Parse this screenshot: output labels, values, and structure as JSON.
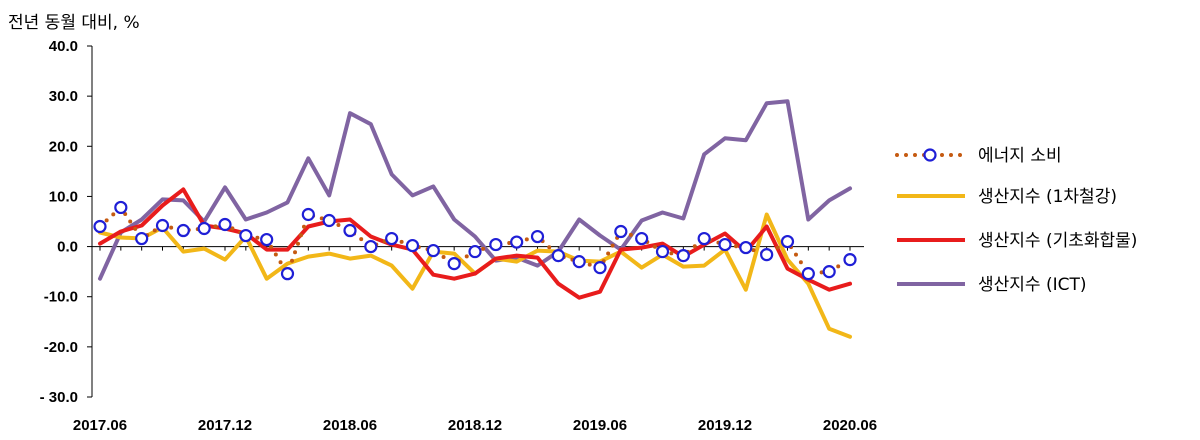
{
  "chart_data": {
    "type": "line",
    "unit_label": "전년 동월 대비, %",
    "ylim": [
      -30,
      40
    ],
    "y_ticks": [
      40,
      30,
      20,
      10,
      0,
      -10,
      -20,
      -30
    ],
    "y_tick_labels": [
      "40.0",
      "30.0",
      "20.0",
      "10.0",
      "0.0",
      "-10.0",
      "-20.0",
      "- 30.0"
    ],
    "x_tick_labels": [
      "2017.06",
      "2017.12",
      "2018.06",
      "2018.12",
      "2019.06",
      "2019.12",
      "2020.06"
    ],
    "x_tick_positions": [
      0,
      6,
      12,
      18,
      24,
      30,
      36
    ],
    "grid": false,
    "legend_position": "right",
    "series": [
      {
        "name": "에너지 소비",
        "color": "#c55a11",
        "marker_color": "#1f1fd6",
        "style": "dotted-circle",
        "values": [
          4.0,
          7.8,
          1.6,
          4.2,
          3.2,
          3.6,
          4.4,
          2.2,
          1.4,
          -5.4,
          6.4,
          5.2,
          3.2,
          0.0,
          1.6,
          0.2,
          -0.8,
          -3.4,
          -1.0,
          0.4,
          0.9,
          2.0,
          -1.8,
          -3.0,
          -4.2,
          3.0,
          1.6,
          -1.0,
          -1.8,
          1.6,
          0.4,
          -0.2,
          -1.6,
          1.0,
          -5.4,
          -5.0,
          -2.6
        ]
      },
      {
        "name": "생산지수 (1차철강)",
        "color": "#f2b718",
        "style": "line",
        "values": [
          2.8,
          1.8,
          1.6,
          3.8,
          -1.0,
          -0.4,
          -2.6,
          2.0,
          -6.4,
          -3.4,
          -2.0,
          -1.4,
          -2.4,
          -1.8,
          -3.8,
          -8.4,
          -1.0,
          -1.4,
          -5.4,
          -2.4,
          -3.0,
          -0.8,
          -1.0,
          -2.8,
          -3.0,
          -1.0,
          -4.2,
          -1.6,
          -4.0,
          -3.8,
          -0.6,
          -8.6,
          6.4,
          -2.6,
          -7.4,
          -16.4,
          -18.0
        ]
      },
      {
        "name": "생산지수 (기초화합물)",
        "color": "#e81c1c",
        "style": "line",
        "values": [
          0.6,
          3.0,
          4.2,
          8.2,
          11.4,
          4.2,
          3.6,
          2.6,
          -0.6,
          -0.6,
          4.0,
          5.0,
          5.4,
          2.0,
          0.4,
          -0.6,
          -5.6,
          -6.4,
          -5.4,
          -2.4,
          -1.8,
          -2.2,
          -7.4,
          -10.2,
          -9.0,
          -0.6,
          -0.2,
          0.6,
          -2.0,
          0.4,
          2.6,
          -1.0,
          4.0,
          -4.4,
          -6.6,
          -8.6,
          -7.4
        ]
      },
      {
        "name": "생산지수 (ICT)",
        "color": "#8064a2",
        "style": "line",
        "values": [
          -6.4,
          2.8,
          5.4,
          9.4,
          9.2,
          5.0,
          11.8,
          5.4,
          6.8,
          8.8,
          17.6,
          10.2,
          26.6,
          24.4,
          14.4,
          10.2,
          12.0,
          5.4,
          2.0,
          -2.8,
          -2.2,
          -3.8,
          -1.0,
          5.4,
          2.2,
          -0.6,
          5.2,
          6.8,
          5.6,
          18.4,
          21.6,
          21.2,
          28.6,
          29.0,
          5.4,
          9.2,
          11.6
        ]
      }
    ]
  }
}
